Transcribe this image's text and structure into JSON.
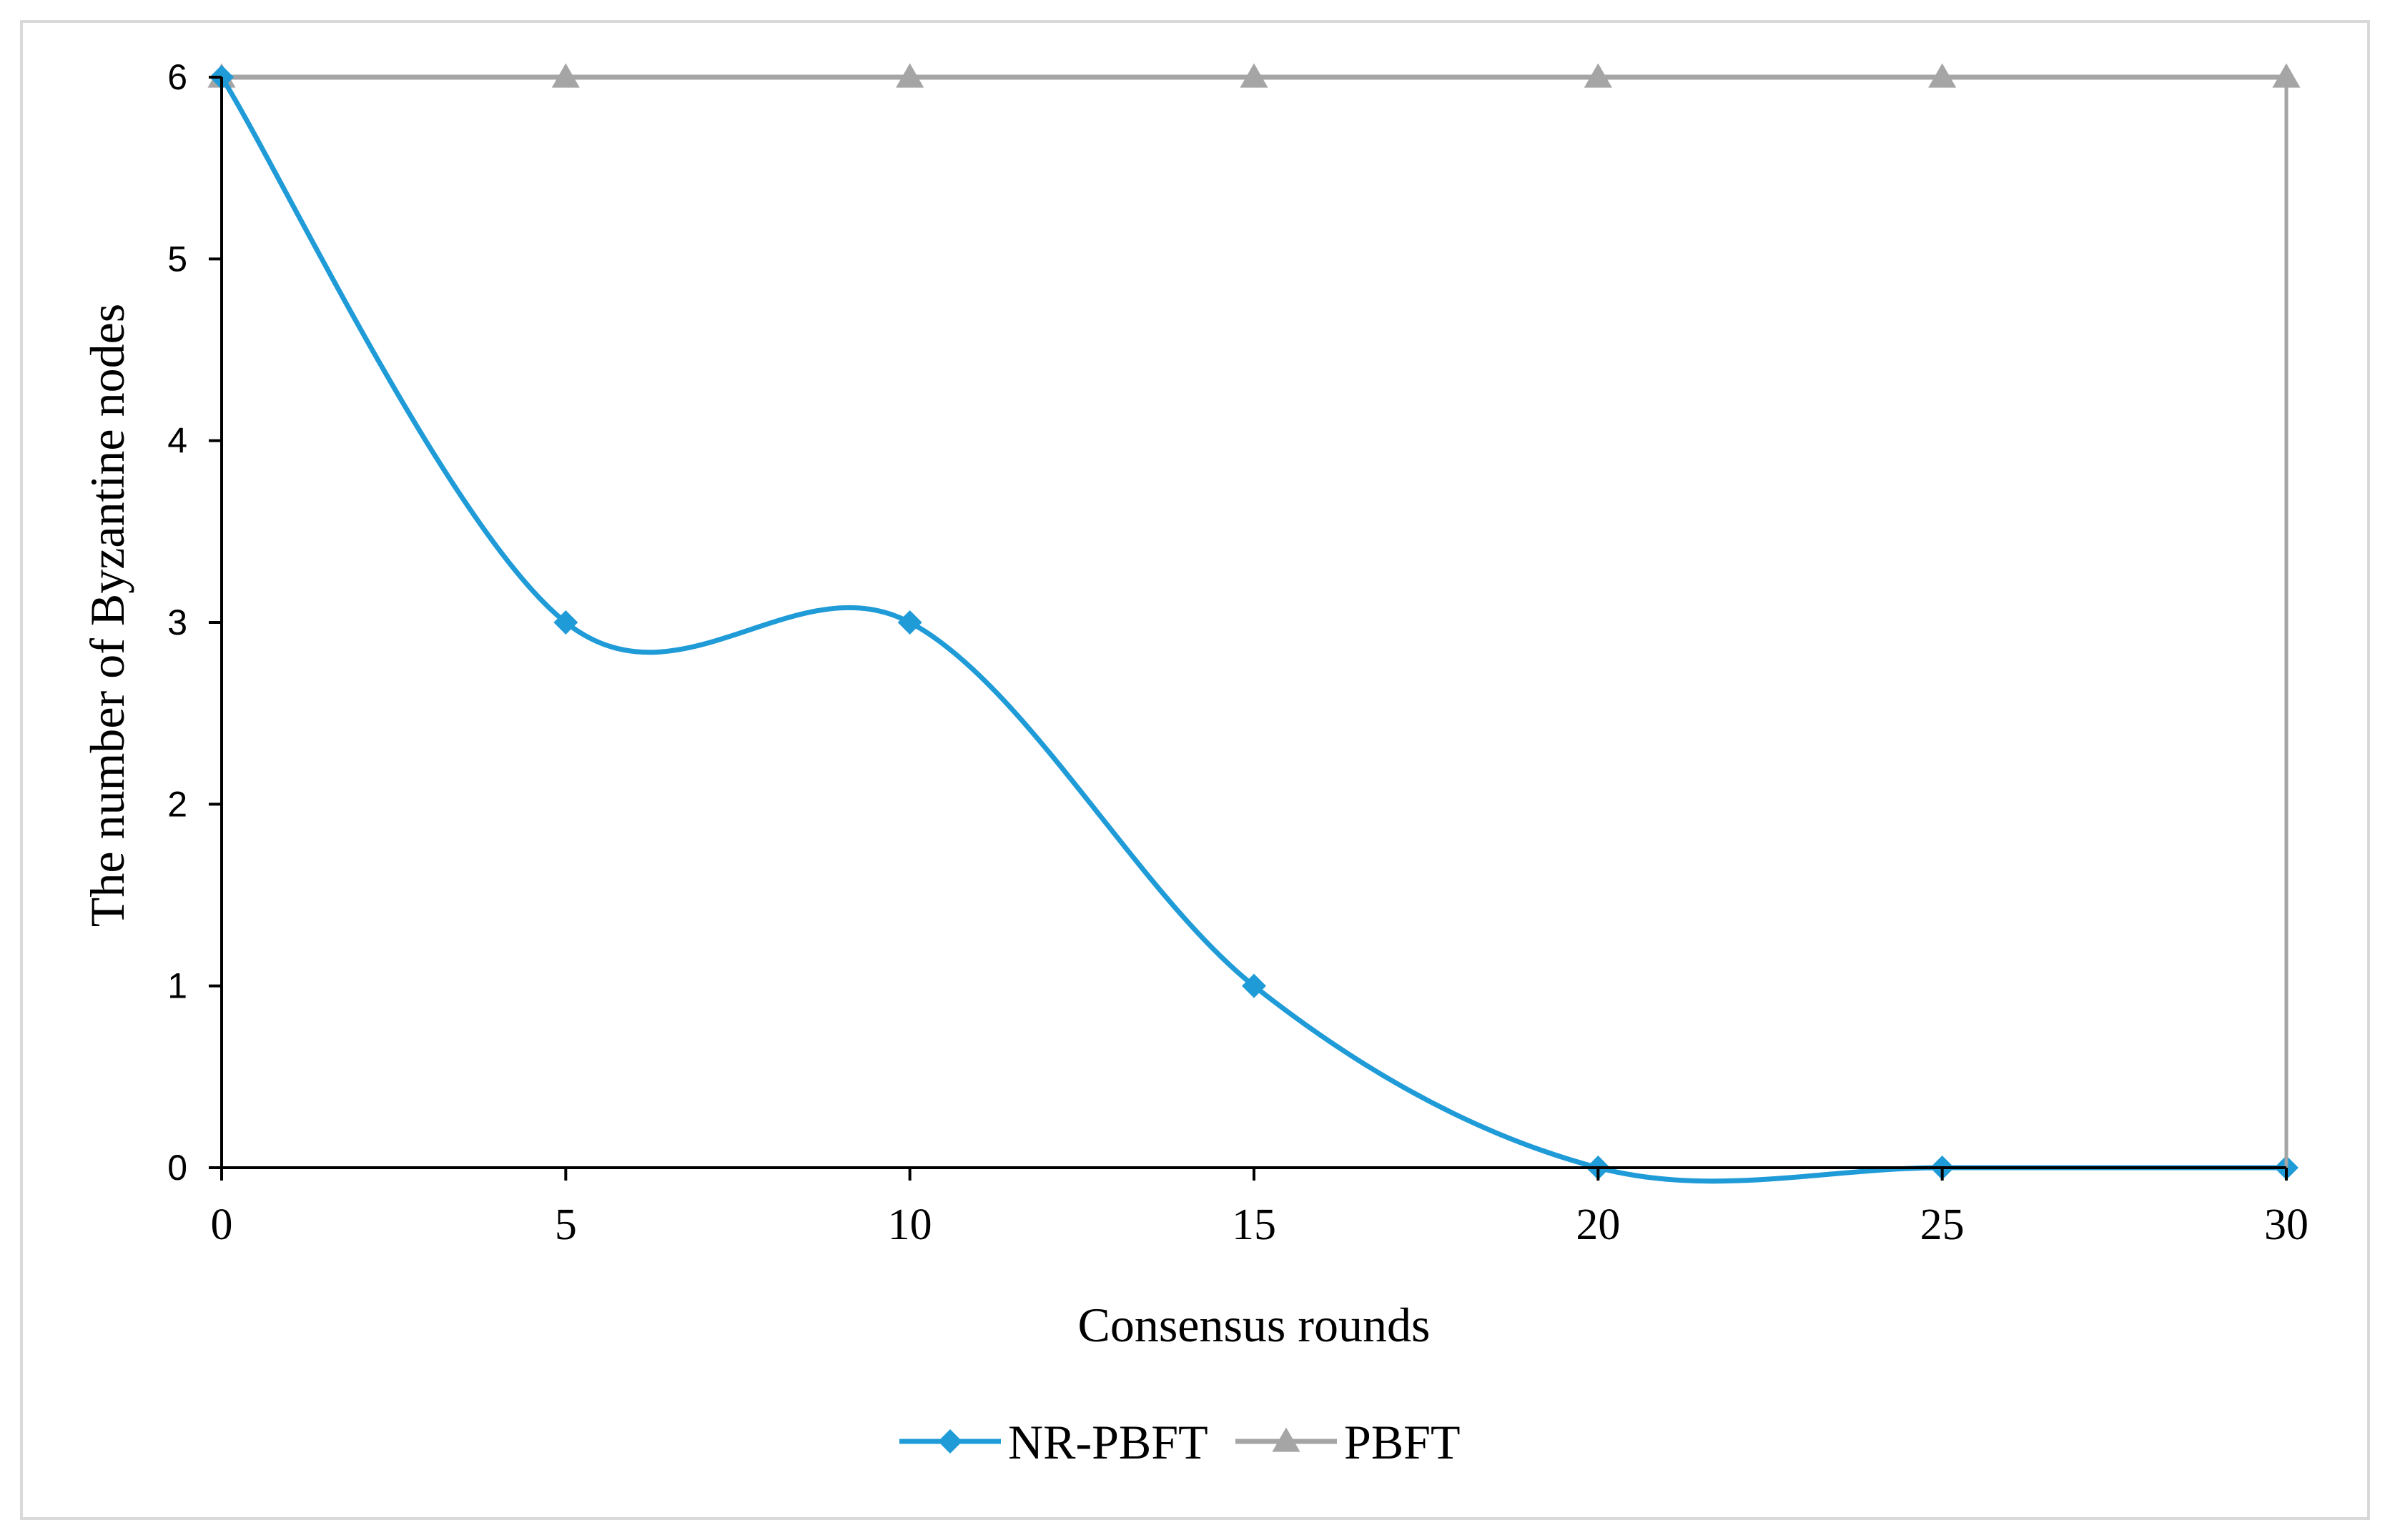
{
  "chart_data": {
    "type": "line",
    "title": "",
    "xlabel": "Consensus rounds",
    "ylabel": "The number of Byzantine nodes",
    "x": [
      0,
      5,
      10,
      15,
      20,
      25,
      30
    ],
    "xlim": [
      0,
      30
    ],
    "ylim": [
      0,
      6
    ],
    "x_ticks": [
      "0",
      "5",
      "10",
      "15",
      "20",
      "25",
      "30"
    ],
    "y_ticks": [
      "0",
      "1",
      "2",
      "3",
      "4",
      "5",
      "6"
    ],
    "grid": false,
    "legend_position": "bottom",
    "series": [
      {
        "name": "NR-PBFT",
        "values": [
          6,
          3,
          3,
          1,
          0,
          0,
          0
        ],
        "color": "#1f9bd7",
        "marker": "diamond",
        "smooth": true
      },
      {
        "name": "PBFT",
        "values": [
          6,
          6,
          6,
          6,
          6,
          6,
          6
        ],
        "color": "#a5a5a5",
        "marker": "triangle",
        "smooth": false
      }
    ]
  }
}
